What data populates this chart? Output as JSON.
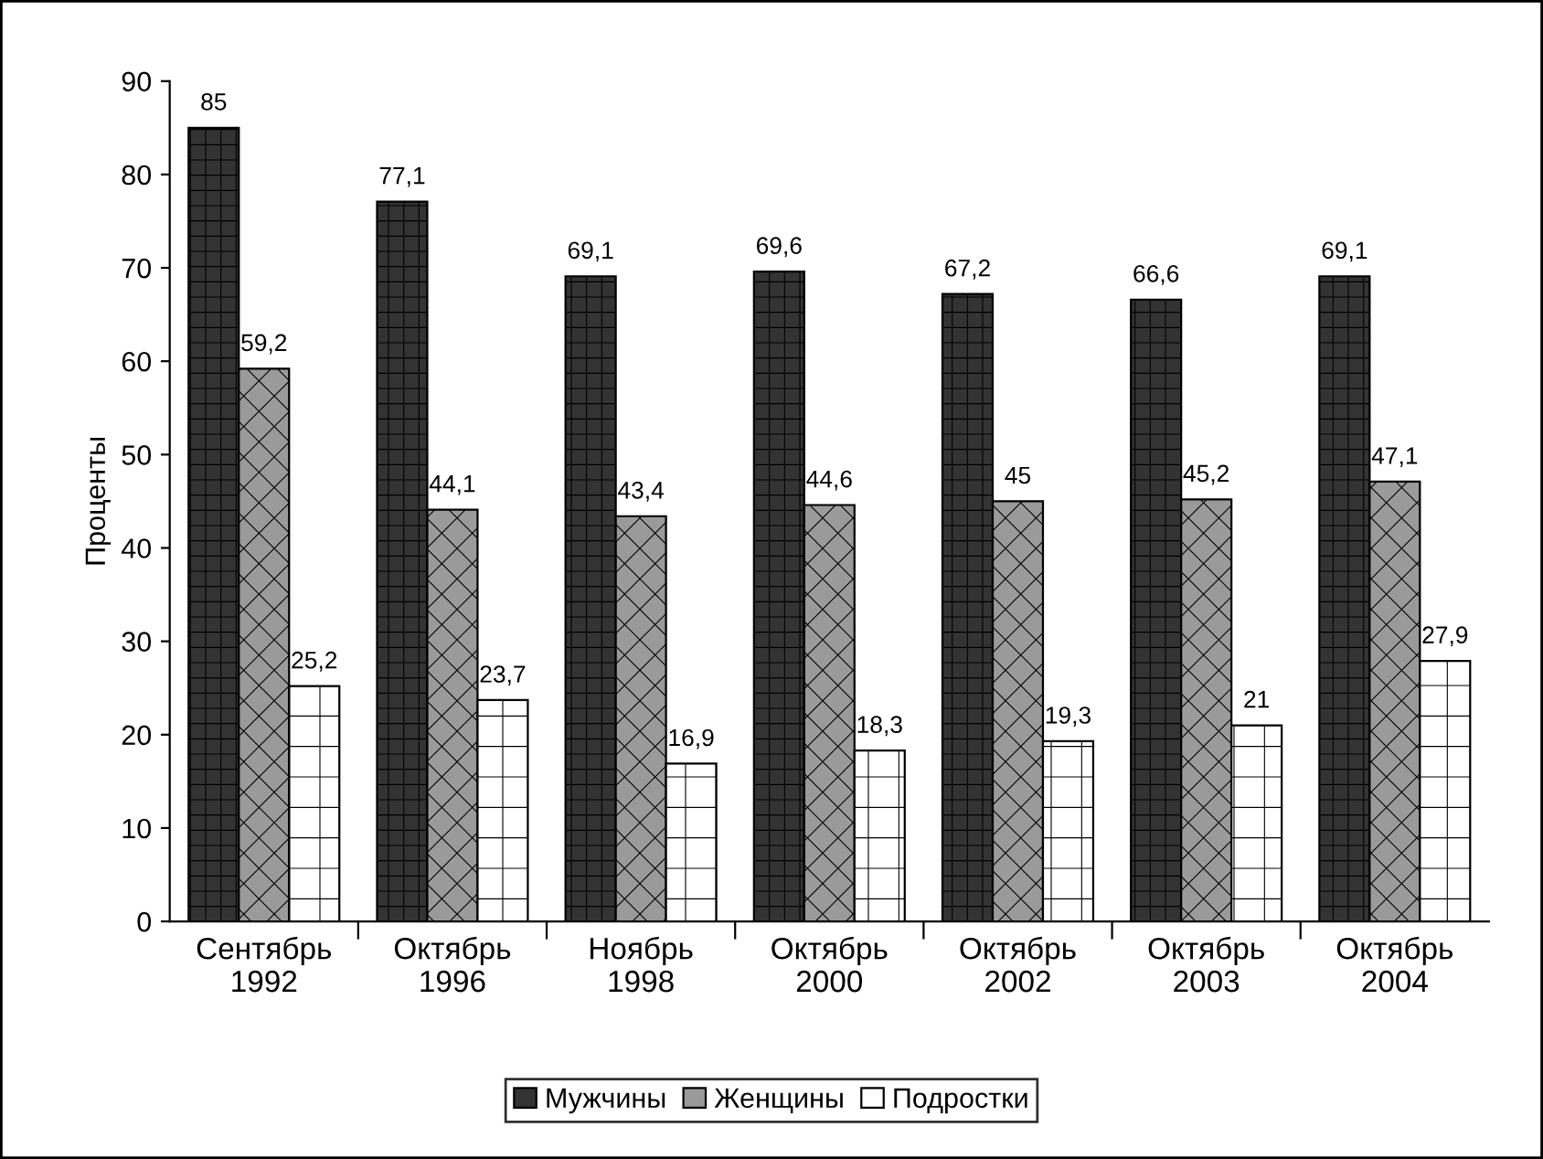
{
  "chart_data": {
    "type": "bar",
    "ylabel": "Проценты",
    "categories": [
      "Сентябрь\n1992",
      "Октябрь\n1996",
      "Ноябрь\n1998",
      "Октябрь\n2000",
      "Октябрь\n2002",
      "Октябрь\n2003",
      "Октябрь\n2004"
    ],
    "series": [
      {
        "name": "Мужчины",
        "color": "#333333",
        "values": [
          85,
          77.1,
          69.1,
          69.6,
          67.2,
          66.6,
          69.1
        ],
        "value_labels": [
          "85",
          "77,1",
          "69,1",
          "69,6",
          "67,2",
          "66,6",
          "69,1"
        ]
      },
      {
        "name": "Женщины",
        "color": "#9a9a9a",
        "values": [
          59.2,
          44.1,
          43.4,
          44.6,
          45,
          45.2,
          47.1
        ],
        "value_labels": [
          "59,2",
          "44,1",
          "43,4",
          "44,6",
          "45",
          "45,2",
          "47,1"
        ]
      },
      {
        "name": "Подростки",
        "color": "#ffffff",
        "values": [
          25.2,
          23.7,
          16.9,
          18.3,
          19.3,
          21,
          27.9
        ],
        "value_labels": [
          "25,2",
          "23,7",
          "16,9",
          "18,3",
          "19,3",
          "21",
          "27,9"
        ]
      }
    ],
    "ylim": [
      0,
      90
    ],
    "yticks": [
      0,
      10,
      20,
      30,
      40,
      50,
      60,
      70,
      80,
      90
    ],
    "grid": false,
    "legend": "bottom"
  }
}
